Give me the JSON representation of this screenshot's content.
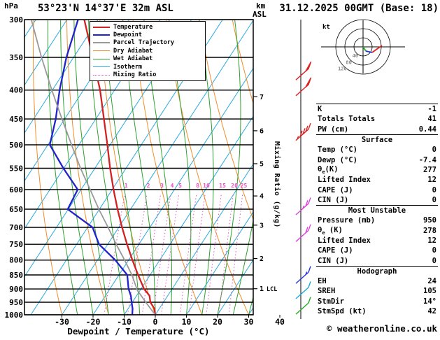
{
  "header": {
    "station": "53°23'N 14°37'E 32m ASL",
    "datetime": "31.12.2025 00GMT (Base: 18)"
  },
  "labels": {
    "hpa": "hPa",
    "km": "km",
    "asl": "ASL",
    "lcl": "LCL",
    "mixing": "Mixing Ratio (g/kg)",
    "kt": "kt"
  },
  "legend": {
    "items": [
      {
        "label": "Temperature",
        "color": "#d42020",
        "width": 2.5,
        "dash": "solid"
      },
      {
        "label": "Dewpoint",
        "color": "#2222cc",
        "width": 2.5,
        "dash": "solid"
      },
      {
        "label": "Parcel Trajectory",
        "color": "#999999",
        "width": 2,
        "dash": "solid"
      },
      {
        "label": "Dry Adiabat",
        "color": "#f28c28",
        "width": 1,
        "dash": "solid"
      },
      {
        "label": "Wet Adiabat",
        "color": "#2ea12e",
        "width": 1,
        "dash": "solid"
      },
      {
        "label": "Isotherm",
        "color": "#29aae1",
        "width": 1,
        "dash": "solid"
      },
      {
        "label": "Mixing Ratio",
        "color": "#e84fc0",
        "width": 1.5,
        "dash": "dotted"
      }
    ]
  },
  "panel": {
    "top_rows": [
      [
        "K",
        "-1"
      ],
      [
        "Totals Totals",
        "41"
      ],
      [
        "PW (cm)",
        "0.44"
      ]
    ],
    "sections": [
      {
        "title": "Surface",
        "rows": [
          [
            "Temp (°C)",
            "0"
          ],
          [
            "Dewp (°C)",
            "-7.4"
          ],
          [
            "θₑ(K)",
            "277"
          ],
          [
            "Lifted Index",
            "12"
          ],
          [
            "CAPE (J)",
            "0"
          ],
          [
            "CIN (J)",
            "0"
          ]
        ]
      },
      {
        "title": "Most Unstable",
        "rows": [
          [
            "Pressure (mb)",
            "950"
          ],
          [
            "θₑ (K)",
            "278"
          ],
          [
            "Lifted Index",
            "12"
          ],
          [
            "CAPE (J)",
            "0"
          ],
          [
            "CIN (J)",
            "0"
          ]
        ]
      },
      {
        "title": "Hodograph",
        "rows": [
          [
            "EH",
            "24"
          ],
          [
            "SREH",
            "105"
          ],
          [
            "StmDir",
            "14°"
          ],
          [
            "StmSpd (kt)",
            "42"
          ]
        ]
      }
    ]
  },
  "footer": {
    "copyright": "© weatheronline.co.uk"
  },
  "chart_data": {
    "type": "line",
    "title": "Skew-T log-P diagram",
    "x_axis": {
      "label": "Dewpoint / Temperature (°C)",
      "ticks": [
        -30,
        -20,
        -10,
        0,
        10,
        20,
        30,
        40
      ]
    },
    "y_axis": {
      "label": "hPa",
      "scale": "log",
      "ticks": [
        300,
        350,
        400,
        450,
        500,
        550,
        600,
        650,
        700,
        750,
        800,
        850,
        900,
        950,
        1000
      ],
      "range": [
        300,
        1000
      ]
    },
    "secondary_y_axis": {
      "label": "km ASL",
      "ticks": [
        1,
        2,
        3,
        4,
        5,
        6,
        7
      ],
      "lcl_km": 1
    },
    "isotherm_step_c": 10,
    "mixing_ratio_lines_gkg": [
      1,
      2,
      3,
      4,
      5,
      8,
      10,
      15,
      20,
      25
    ],
    "series": [
      {
        "name": "Temperature",
        "color": "#d42020",
        "width": 2.3,
        "points": [
          [
            1000,
            0
          ],
          [
            975,
            -1
          ],
          [
            950,
            -3
          ],
          [
            925,
            -4
          ],
          [
            900,
            -6.5
          ],
          [
            850,
            -10
          ],
          [
            800,
            -13.5
          ],
          [
            750,
            -17
          ],
          [
            700,
            -20.5
          ],
          [
            650,
            -24
          ],
          [
            600,
            -27.5
          ],
          [
            550,
            -31
          ],
          [
            500,
            -34.5
          ],
          [
            450,
            -38.5
          ],
          [
            400,
            -43
          ],
          [
            350,
            -49
          ],
          [
            300,
            -56
          ]
        ]
      },
      {
        "name": "Dewpoint",
        "color": "#2222cc",
        "width": 2.3,
        "points": [
          [
            1000,
            -7.4
          ],
          [
            975,
            -8
          ],
          [
            950,
            -9
          ],
          [
            925,
            -10
          ],
          [
            900,
            -11.5
          ],
          [
            850,
            -13.5
          ],
          [
            800,
            -19
          ],
          [
            750,
            -26
          ],
          [
            700,
            -30
          ],
          [
            650,
            -40
          ],
          [
            600,
            -39
          ],
          [
            550,
            -46
          ],
          [
            500,
            -53
          ],
          [
            450,
            -54
          ],
          [
            400,
            -56
          ],
          [
            350,
            -57.5
          ],
          [
            300,
            -58
          ]
        ]
      },
      {
        "name": "Parcel Trajectory",
        "color": "#999999",
        "width": 1.8,
        "points": [
          [
            1000,
            0
          ],
          [
            950,
            -4.5
          ],
          [
            905,
            -8.5
          ],
          [
            850,
            -12
          ],
          [
            800,
            -16
          ],
          [
            750,
            -20.5
          ],
          [
            700,
            -25
          ],
          [
            650,
            -30
          ],
          [
            600,
            -35
          ],
          [
            550,
            -40.5
          ],
          [
            500,
            -46
          ],
          [
            450,
            -52
          ],
          [
            400,
            -58.5
          ],
          [
            350,
            -65.5
          ],
          [
            300,
            -73
          ]
        ]
      }
    ],
    "wind_barbs": [
      {
        "pressure": 375,
        "speed_kt": 50,
        "color": "#dd2222"
      },
      {
        "pressure": 400,
        "speed_kt": 50,
        "color": "#dd2222"
      },
      {
        "pressure": 480,
        "speed_kt": 45,
        "color": "#dd2222"
      },
      {
        "pressure": 650,
        "speed_kt": 25,
        "color": "#dd44dd"
      },
      {
        "pressure": 725,
        "speed_kt": 20,
        "color": "#dd44dd"
      },
      {
        "pressure": 860,
        "speed_kt": 15,
        "color": "#2233dd"
      },
      {
        "pressure": 915,
        "speed_kt": 10,
        "color": "#11aadd"
      },
      {
        "pressure": 975,
        "speed_kt": 10,
        "color": "#22aa22"
      }
    ],
    "hodograph": {
      "unit": "kt",
      "ring_labels": [
        40,
        80,
        120
      ],
      "trace_segments": [
        {
          "color": "#22aa22",
          "pts": [
            [
              0,
              0
            ],
            [
              4,
              6
            ]
          ]
        },
        {
          "color": "#2233dd",
          "pts": [
            [
              4,
              6
            ],
            [
              13,
              8
            ]
          ]
        },
        {
          "color": "#dd2222",
          "pts": [
            [
              13,
              8
            ],
            [
              27,
              -2
            ]
          ]
        }
      ]
    }
  }
}
